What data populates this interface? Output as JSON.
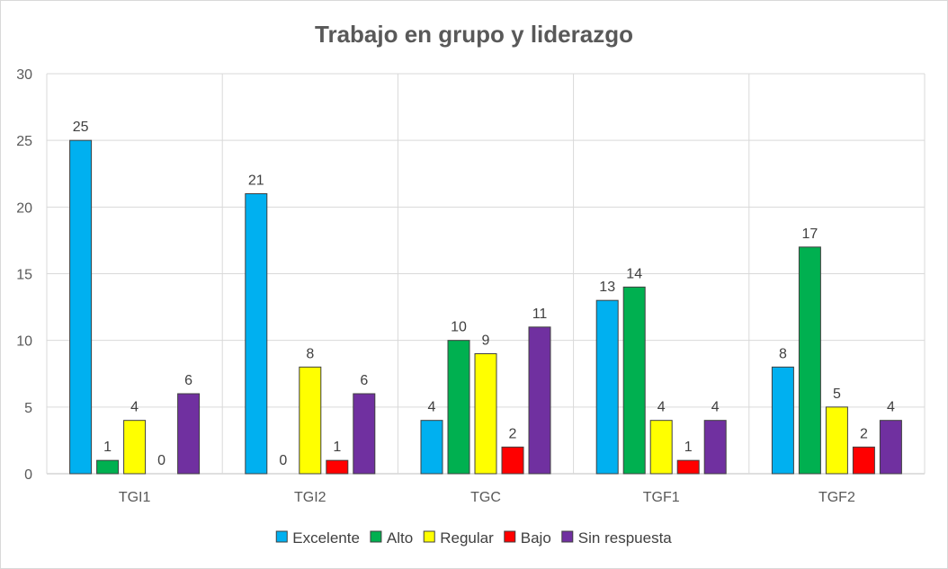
{
  "chart_data": {
    "type": "bar",
    "title": "Trabajo en grupo y liderazgo",
    "xlabel": "",
    "ylabel": "",
    "ylim": [
      0,
      30
    ],
    "yticks": [
      0,
      5,
      10,
      15,
      20,
      25,
      30
    ],
    "categories": [
      "TGI1",
      "TGI2",
      "TGC",
      "TGF1",
      "TGF2"
    ],
    "grid": true,
    "legend_position": "bottom",
    "series": [
      {
        "name": "Excelente",
        "color": "#00b0f0",
        "values": [
          25,
          21,
          4,
          13,
          8
        ]
      },
      {
        "name": "Alto",
        "color": "#00b050",
        "values": [
          1,
          0,
          10,
          14,
          17
        ]
      },
      {
        "name": "Regular",
        "color": "#ffff00",
        "values": [
          4,
          8,
          9,
          4,
          5
        ]
      },
      {
        "name": "Bajo",
        "color": "#ff0000",
        "values": [
          0,
          1,
          2,
          1,
          2
        ]
      },
      {
        "name": "Sin respuesta",
        "color": "#7030a0",
        "values": [
          6,
          6,
          11,
          4,
          4
        ]
      }
    ]
  }
}
